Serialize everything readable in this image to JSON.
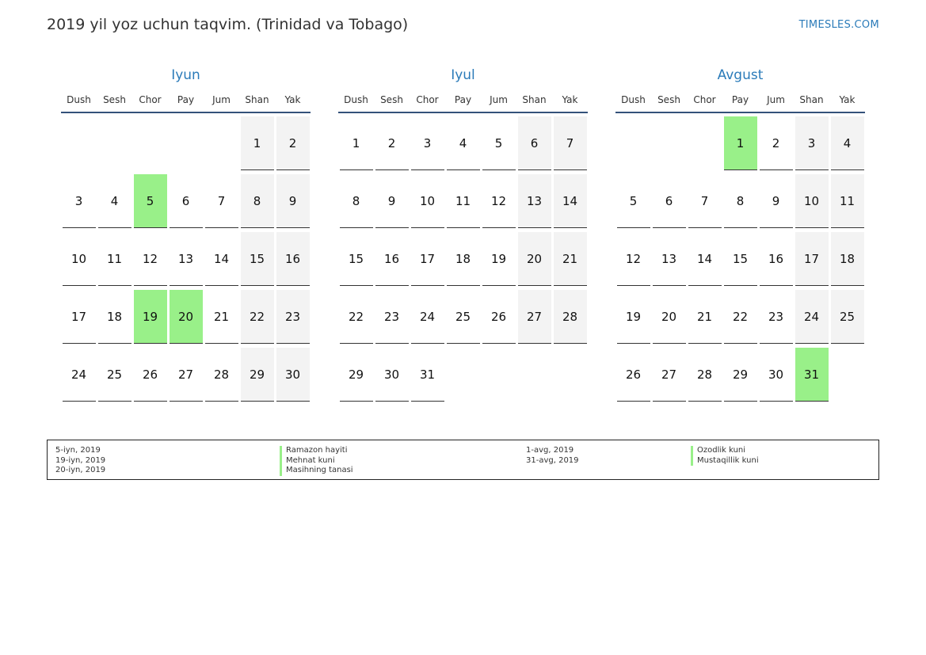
{
  "header": {
    "title": "2019 yil yoz uchun taqvim. (Trinidad va Tobago)",
    "brand": "TIMESLES.COM"
  },
  "weekdays": [
    "Dush",
    "Sesh",
    "Chor",
    "Pay",
    "Jum",
    "Shan",
    "Yak"
  ],
  "colors": {
    "holiday": "#99f089",
    "weekend": "#f3f3f3",
    "accent": "#2b7bb9"
  },
  "months": [
    {
      "name": "Iyun",
      "start_offset": 5,
      "days": 30,
      "holidays": [
        5,
        19,
        20
      ]
    },
    {
      "name": "Iyul",
      "start_offset": 0,
      "days": 31,
      "holidays": []
    },
    {
      "name": "Avgust",
      "start_offset": 3,
      "days": 31,
      "holidays": [
        1,
        31
      ]
    }
  ],
  "legend": {
    "group1": [
      {
        "date": "5-iyn, 2019",
        "name": "Ramazon hayiti"
      },
      {
        "date": "19-iyn, 2019",
        "name": "Mehnat kuni"
      },
      {
        "date": "20-iyn, 2019",
        "name": "Masihning tanasi"
      }
    ],
    "group2": [
      {
        "date": "1-avg, 2019",
        "name": "Ozodlik kuni"
      },
      {
        "date": "31-avg, 2019",
        "name": "Mustaqillik kuni"
      }
    ]
  }
}
